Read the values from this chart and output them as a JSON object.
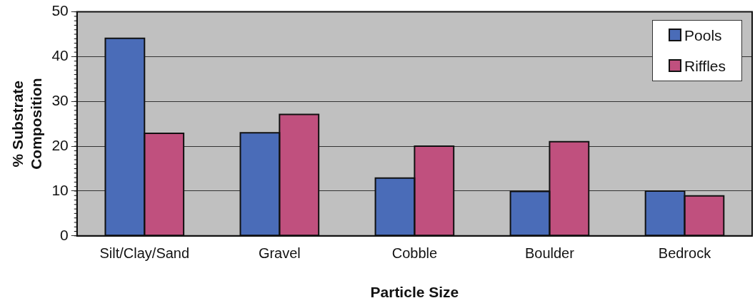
{
  "chart_data": {
    "type": "bar",
    "xlabel": "Particle Size",
    "ylabel": "% Substrate Composition",
    "categories": [
      "Silt/Clay/Sand",
      "Gravel",
      "Cobble",
      "Boulder",
      "Bedrock"
    ],
    "series": [
      {
        "name": "Pools",
        "color": "#4a6cb8",
        "values": [
          44.1,
          23.0,
          12.9,
          9.9,
          10.0
        ]
      },
      {
        "name": "Riffles",
        "color": "#c0507e",
        "values": [
          22.9,
          27.1,
          20.0,
          21.0,
          8.9
        ]
      }
    ],
    "ylim": [
      0,
      50
    ],
    "yticks": [
      0,
      10,
      20,
      30,
      40,
      50
    ],
    "grid": "y",
    "legend": "top right"
  }
}
